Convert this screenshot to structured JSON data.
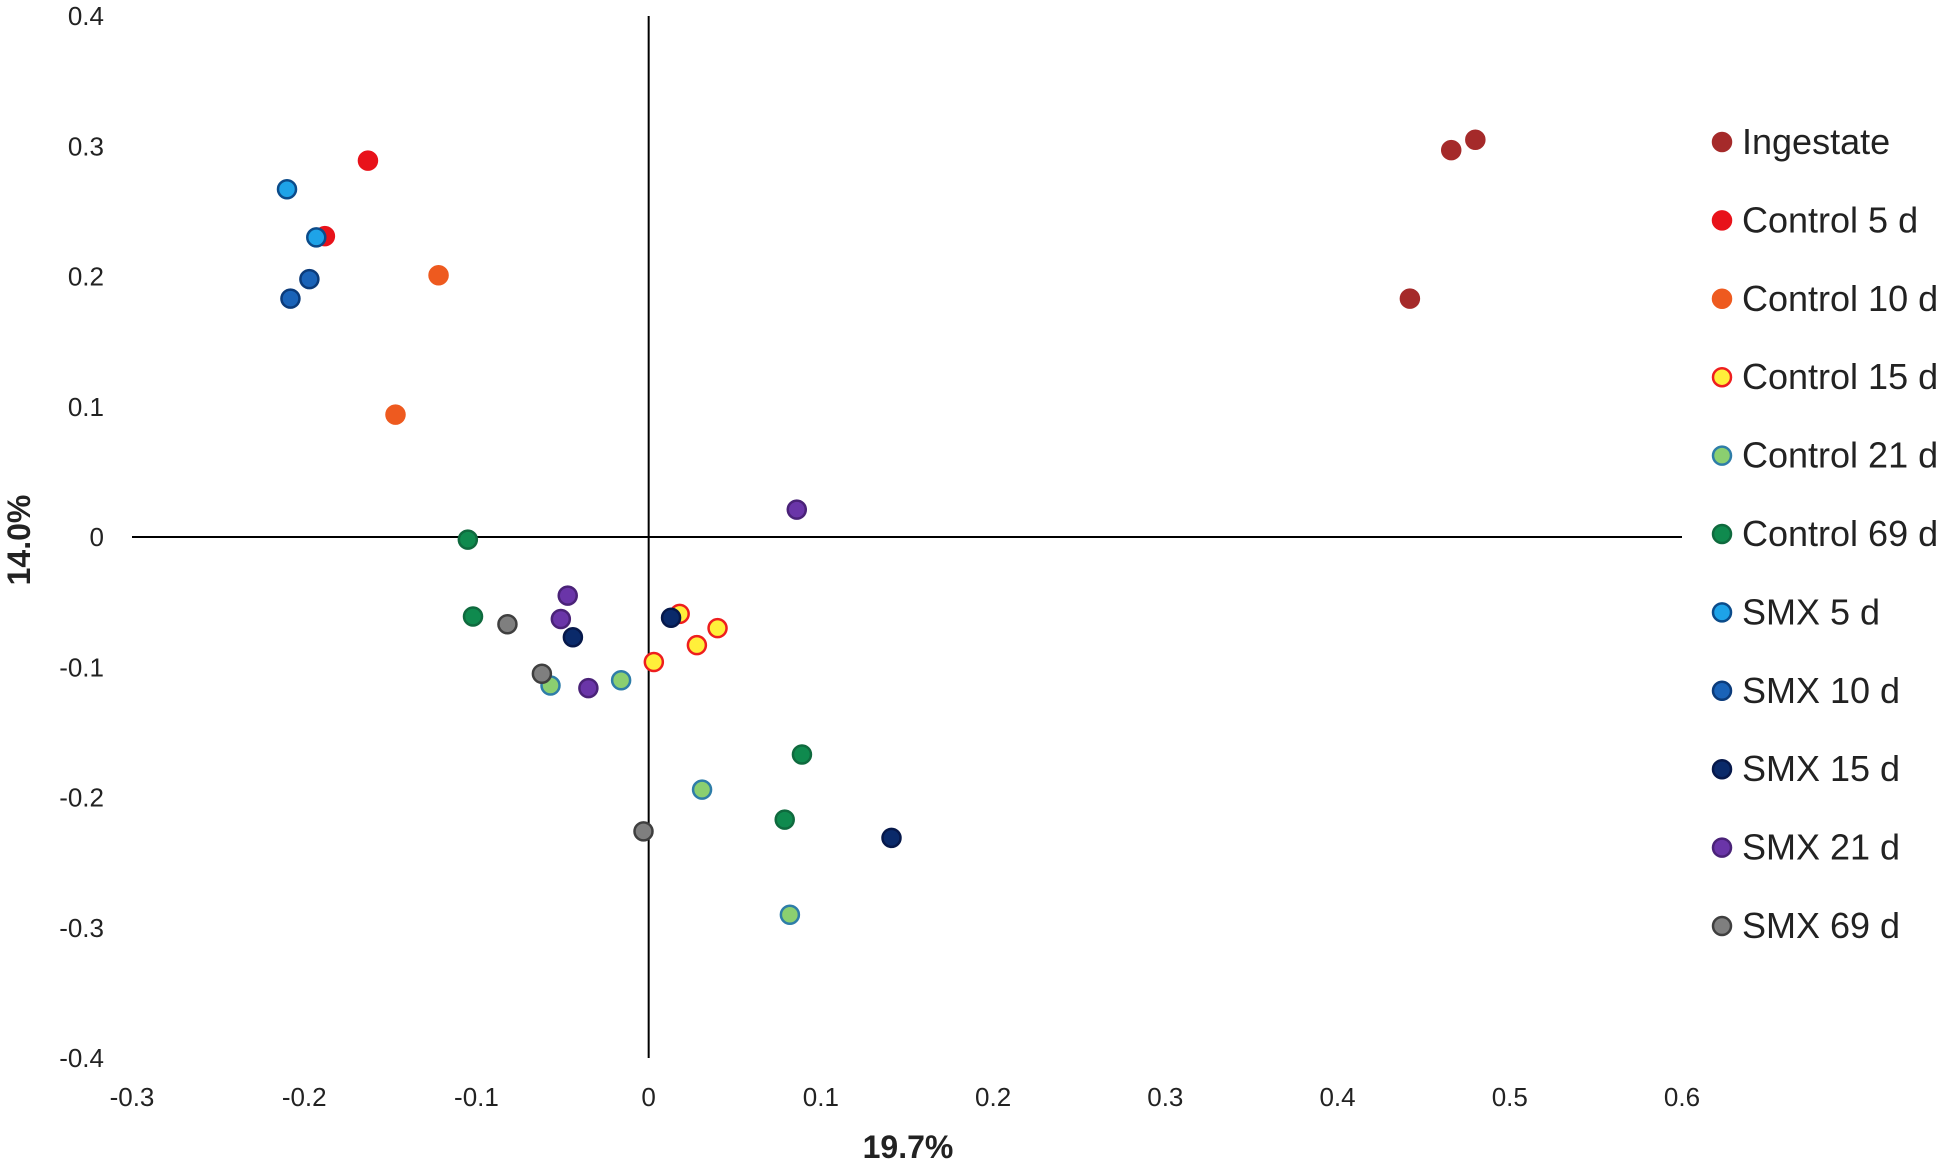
{
  "chart_data": {
    "type": "scatter",
    "title": "",
    "xlabel": "19.7%",
    "ylabel": "14.0%",
    "xlim": [
      -0.3,
      0.6
    ],
    "ylim": [
      -0.4,
      0.4
    ],
    "xticks": [
      "-0.3",
      "-0.2",
      "-0.1",
      "0",
      "0.1",
      "0.2",
      "0.3",
      "0.4",
      "0.5",
      "0.6"
    ],
    "yticks": [
      "0.4",
      "0.3",
      "0.2",
      "0.1",
      "0",
      "-0.1",
      "-0.2",
      "-0.3",
      "-0.4"
    ],
    "grid": false,
    "axes_through_origin": true,
    "legend_position": "right",
    "series": [
      {
        "name": "Ingestate",
        "fill": "#a52a2a",
        "stroke": "#a52a2a",
        "points": [
          [
            0.48,
            0.305
          ],
          [
            0.466,
            0.297
          ],
          [
            0.442,
            0.183
          ]
        ]
      },
      {
        "name": "Control 5 d",
        "fill": "#e8121a",
        "stroke": "#e8121a",
        "points": [
          [
            -0.163,
            0.289
          ],
          [
            -0.188,
            0.231
          ]
        ]
      },
      {
        "name": "Control 10 d",
        "fill": "#ee5a1f",
        "stroke": "#ee5a1f",
        "points": [
          [
            -0.122,
            0.201
          ],
          [
            -0.147,
            0.094
          ]
        ]
      },
      {
        "name": "Control 15 d",
        "fill": "#ffef3a",
        "stroke": "#ee1e1e",
        "points": [
          [
            0.018,
            -0.059
          ],
          [
            0.04,
            -0.07
          ],
          [
            0.028,
            -0.083
          ],
          [
            0.003,
            -0.096
          ]
        ]
      },
      {
        "name": "Control 21 d",
        "fill": "#8bcf70",
        "stroke": "#2e7da8",
        "points": [
          [
            -0.057,
            -0.114
          ],
          [
            -0.016,
            -0.11
          ],
          [
            0.031,
            -0.194
          ],
          [
            0.082,
            -0.29
          ]
        ]
      },
      {
        "name": "Control 69 d",
        "fill": "#0f8a4e",
        "stroke": "#0f6a3e",
        "points": [
          [
            -0.105,
            -0.002
          ],
          [
            -0.102,
            -0.061
          ],
          [
            0.089,
            -0.167
          ],
          [
            0.079,
            -0.217
          ]
        ]
      },
      {
        "name": "SMX 5 d",
        "fill": "#1ea3e8",
        "stroke": "#0b4b8a",
        "points": [
          [
            -0.21,
            0.267
          ],
          [
            -0.193,
            0.23
          ]
        ]
      },
      {
        "name": "SMX 10 d",
        "fill": "#1a63b8",
        "stroke": "#0b3b7a",
        "points": [
          [
            -0.197,
            0.198
          ],
          [
            -0.208,
            0.183
          ]
        ]
      },
      {
        "name": "SMX 15 d",
        "fill": "#0a2a6a",
        "stroke": "#06184a",
        "points": [
          [
            -0.044,
            -0.077
          ],
          [
            0.013,
            -0.062
          ],
          [
            0.141,
            -0.231
          ]
        ]
      },
      {
        "name": "SMX 21 d",
        "fill": "#6a35a8",
        "stroke": "#4a2278",
        "points": [
          [
            0.086,
            0.021
          ],
          [
            -0.047,
            -0.045
          ],
          [
            -0.051,
            -0.063
          ],
          [
            -0.035,
            -0.116
          ]
        ]
      },
      {
        "name": "SMX 69 d",
        "fill": "#7f7f7f",
        "stroke": "#3f3f3f",
        "points": [
          [
            -0.082,
            -0.067
          ],
          [
            -0.062,
            -0.105
          ],
          [
            -0.003,
            -0.226
          ]
        ]
      }
    ]
  }
}
